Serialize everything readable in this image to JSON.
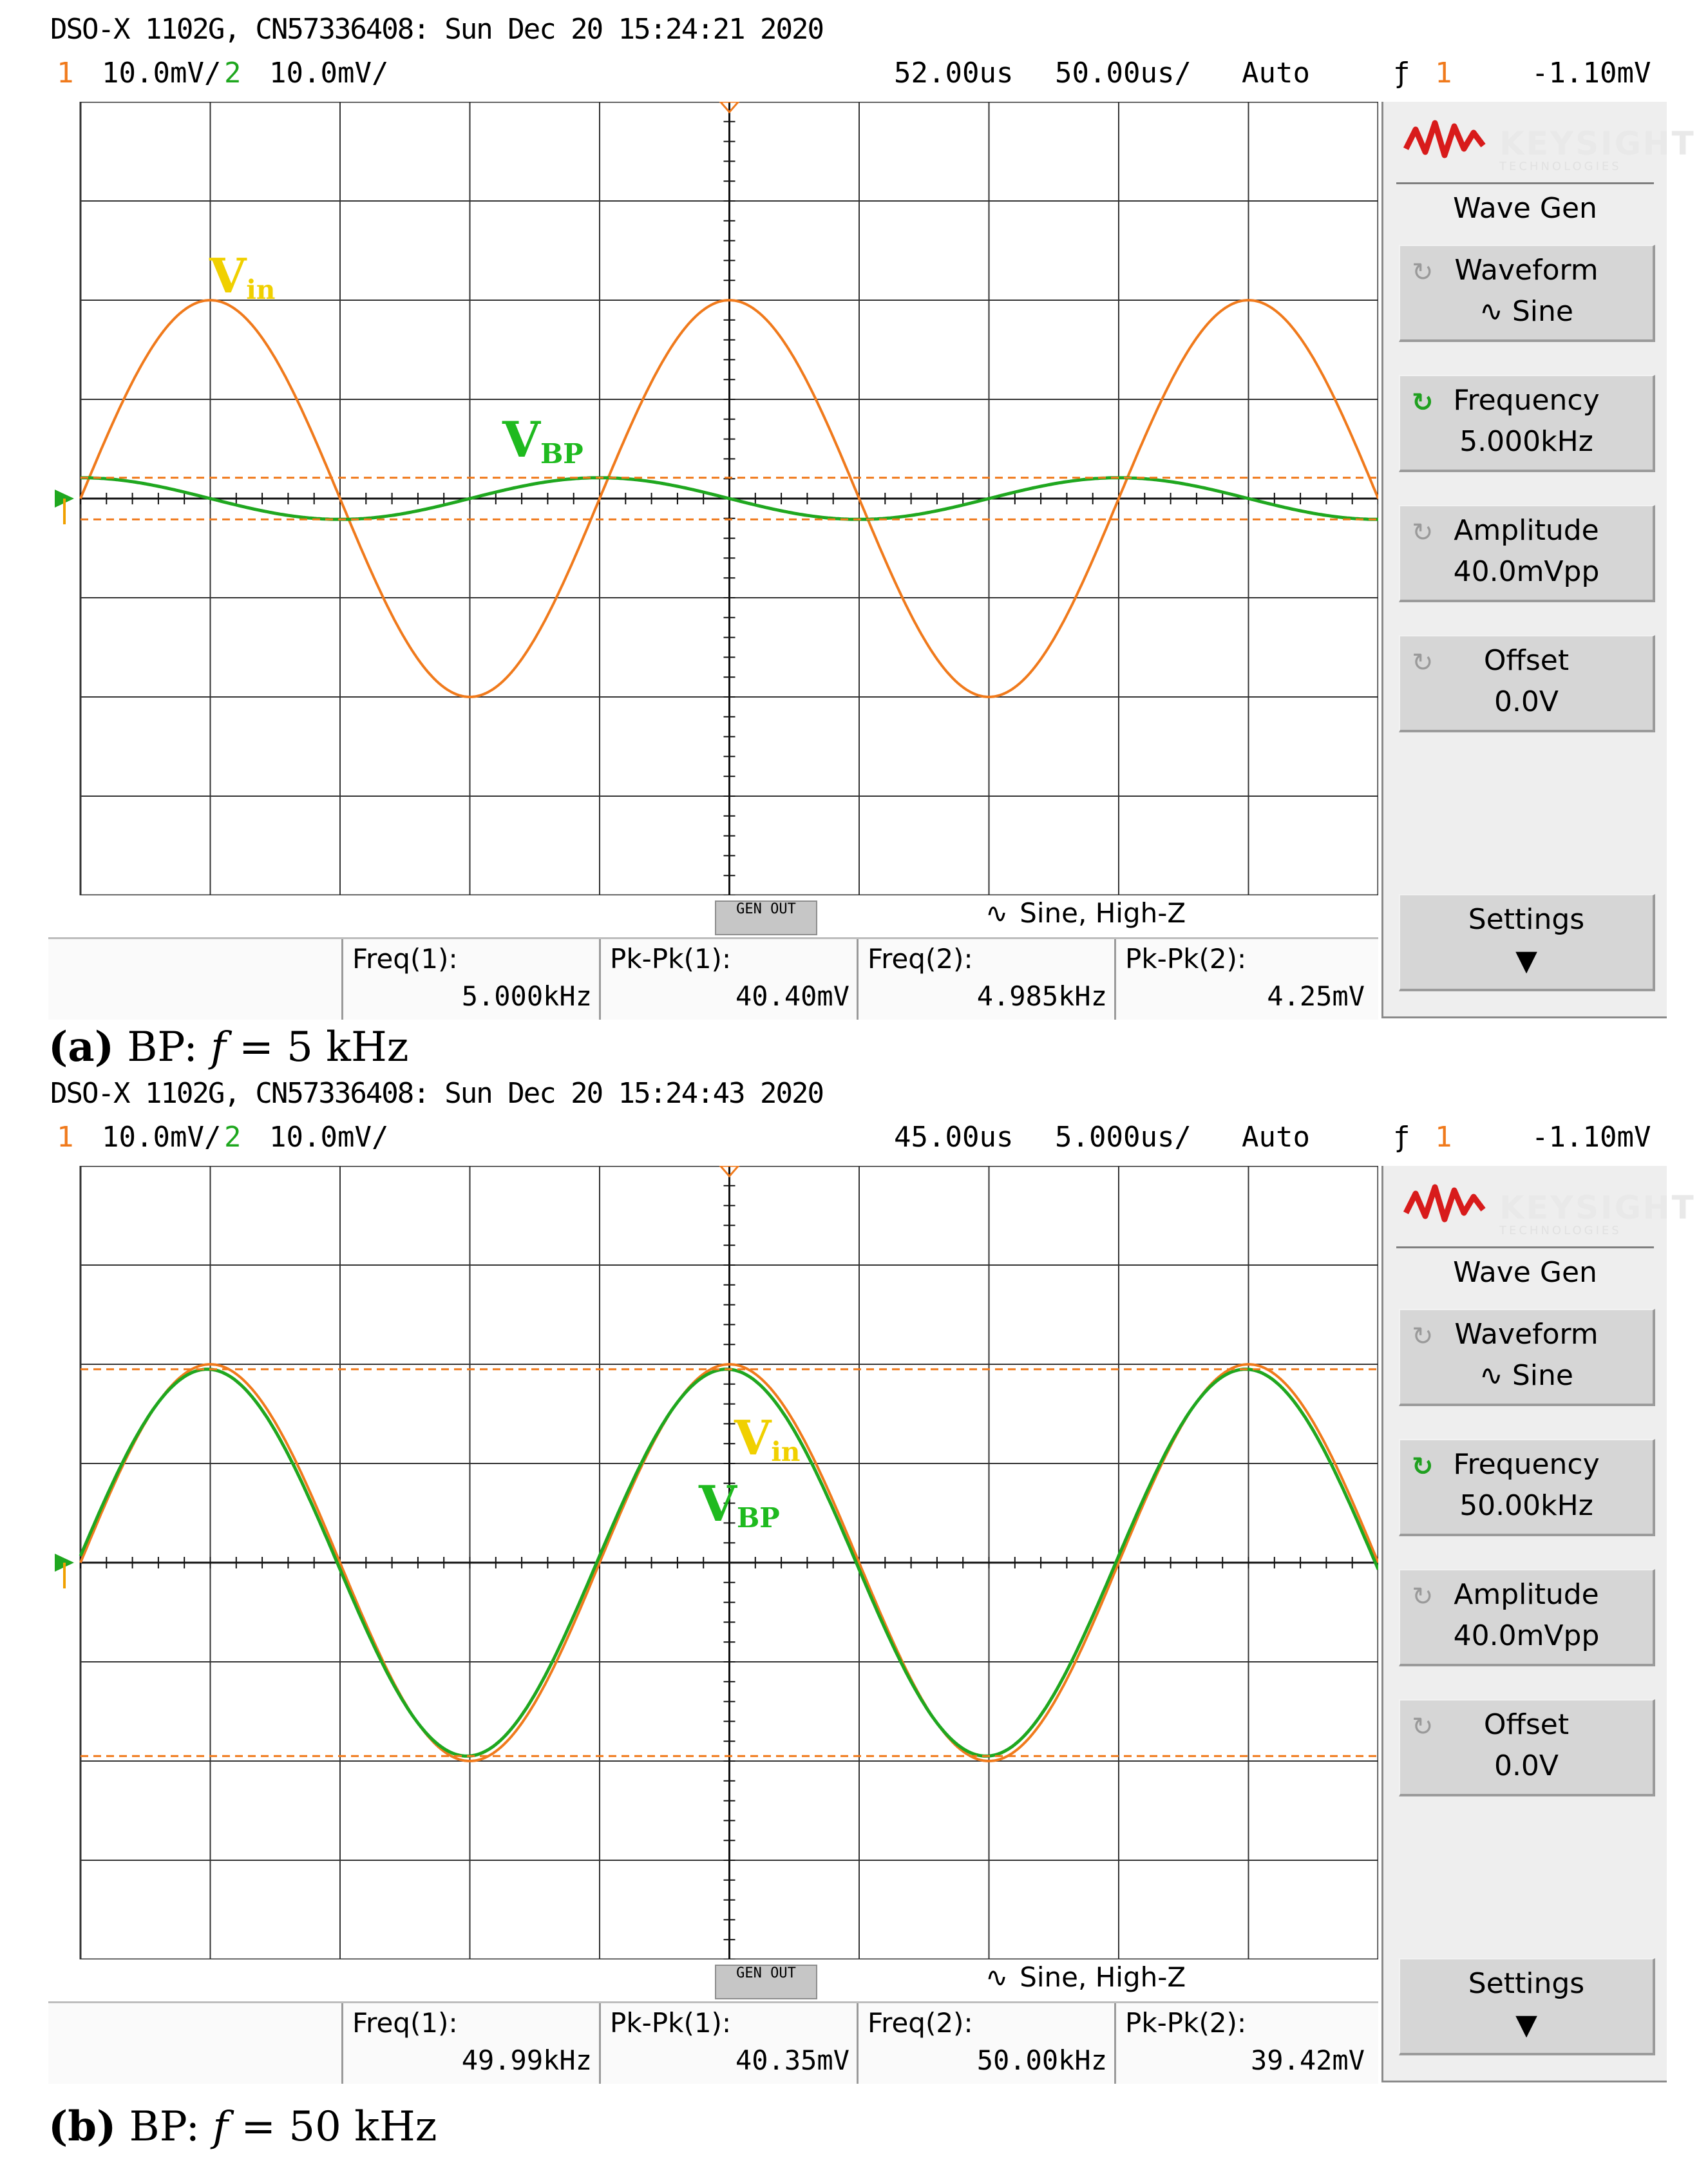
{
  "panels": [
    {
      "header": "DSO-X 1102G, CN57336408: Sun Dec 20 15:24:21 2020",
      "ch1_num": "1",
      "ch1_scale": "10.0mV/",
      "ch2_num": "2",
      "ch2_scale": "10.0mV/",
      "time_offset": "52.00us",
      "time_scale": "50.00us/",
      "trigger_mode": "Auto",
      "trigger_source": "1",
      "trigger_level": "-1.10mV",
      "gen_out": "GEN OUT",
      "gen_info": "Sine, High-Z",
      "measurements": [
        {
          "label": "Freq(1):",
          "value": "5.000kHz"
        },
        {
          "label": "Pk-Pk(1):",
          "value": "40.40mV"
        },
        {
          "label": "Freq(2):",
          "value": "4.985kHz"
        },
        {
          "label": "Pk-Pk(2):",
          "value": "4.25mV"
        }
      ],
      "menu": {
        "brand": "KEYSIGHT",
        "brand_sub": "TECHNOLOGIES",
        "title": "Wave Gen",
        "waveform_label": "Waveform",
        "waveform_value": "Sine",
        "frequency_label": "Frequency",
        "frequency_value": "5.000kHz",
        "amplitude_label": "Amplitude",
        "amplitude_value": "40.0mVpp",
        "offset_label": "Offset",
        "offset_value": "0.0V",
        "settings_label": "Settings"
      },
      "annotations": {
        "vin": "V",
        "vin_sub": "in",
        "vbp": "V",
        "vbp_sub": "BP"
      },
      "caption_letter": "(a)",
      "caption_text": " BP: ",
      "caption_var": "f",
      "caption_value": " = 5 kHz",
      "traces": {
        "vin_peak_div": 2.0,
        "vin_cycles_shown": 2.5,
        "vbp_peak_div": 0.21,
        "vbp_cycles_shown": 2.5,
        "vbp_phase_lead_deg": 90,
        "colors": {
          "vin": "#f07a1c",
          "vbp": "#1fa71f"
        }
      }
    },
    {
      "header": "DSO-X 1102G, CN57336408: Sun Dec 20 15:24:43 2020",
      "ch1_num": "1",
      "ch1_scale": "10.0mV/",
      "ch2_num": "2",
      "ch2_scale": "10.0mV/",
      "time_offset": "45.00us",
      "time_scale": "5.000us/",
      "trigger_mode": "Auto",
      "trigger_source": "1",
      "trigger_level": "-1.10mV",
      "gen_out": "GEN OUT",
      "gen_info": "Sine, High-Z",
      "measurements": [
        {
          "label": "Freq(1):",
          "value": "49.99kHz"
        },
        {
          "label": "Pk-Pk(1):",
          "value": "40.35mV"
        },
        {
          "label": "Freq(2):",
          "value": "50.00kHz"
        },
        {
          "label": "Pk-Pk(2):",
          "value": "39.42mV"
        }
      ],
      "menu": {
        "brand": "KEYSIGHT",
        "brand_sub": "TECHNOLOGIES",
        "title": "Wave Gen",
        "waveform_label": "Waveform",
        "waveform_value": "Sine",
        "frequency_label": "Frequency",
        "frequency_value": "50.00kHz",
        "amplitude_label": "Amplitude",
        "amplitude_value": "40.0mVpp",
        "offset_label": "Offset",
        "offset_value": "0.0V",
        "settings_label": "Settings"
      },
      "annotations": {
        "vin": "V",
        "vin_sub": "in",
        "vbp": "V",
        "vbp_sub": "BP"
      },
      "caption_letter": "(b)",
      "caption_text": " BP: ",
      "caption_var": "f",
      "caption_value": " = 50 kHz",
      "traces": {
        "vin_peak_div": 2.0,
        "vin_cycles_shown": 2.5,
        "vbp_peak_div": 1.95,
        "vbp_cycles_shown": 2.5,
        "vbp_phase_lead_deg": 2,
        "colors": {
          "vin": "#f07a1c",
          "vbp": "#1fa71f"
        }
      }
    }
  ]
}
